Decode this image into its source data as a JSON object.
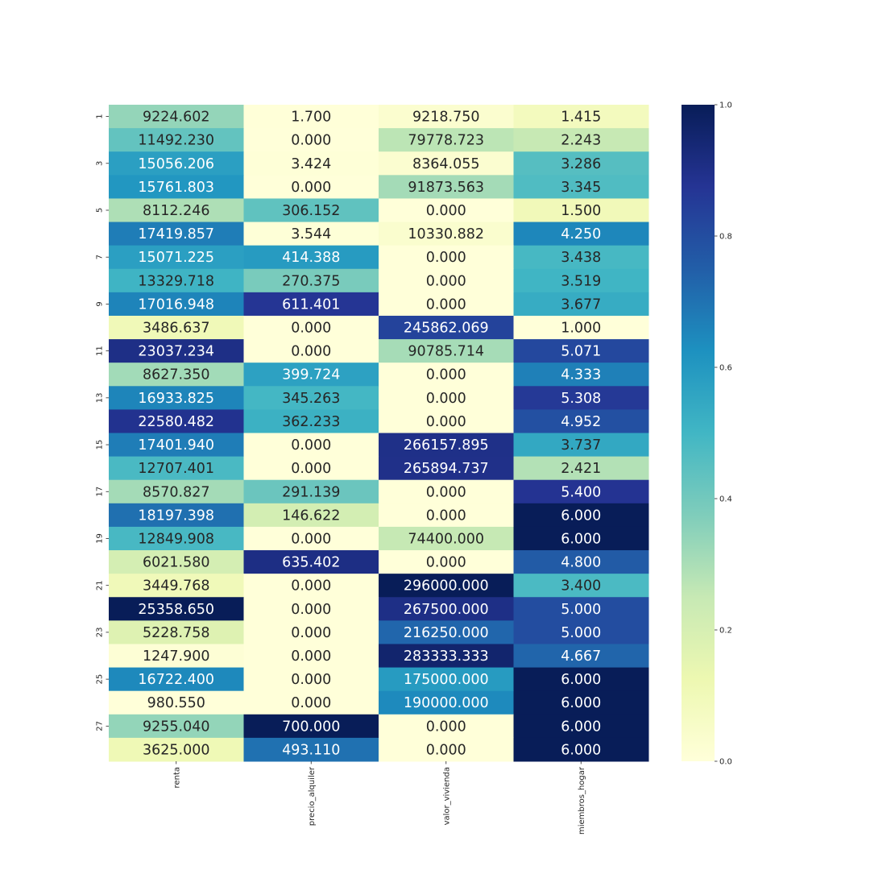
{
  "chart_data": {
    "type": "heatmap",
    "columns": [
      "renta",
      "precio_alquiler",
      "valor_vivienda",
      "miembros_hogar"
    ],
    "row_tick_labels": [
      "1",
      "3",
      "5",
      "7",
      "9",
      "11",
      "13",
      "15",
      "17",
      "19",
      "21",
      "23",
      "25",
      "27"
    ],
    "row_tick_every": 2,
    "row_count": 28,
    "values": [
      [
        9224.602,
        1.7,
        9218.75,
        1.415
      ],
      [
        11492.23,
        0.0,
        79778.723,
        2.243
      ],
      [
        15056.206,
        3.424,
        8364.055,
        3.286
      ],
      [
        15761.803,
        0.0,
        91873.563,
        3.345
      ],
      [
        8112.246,
        306.152,
        0.0,
        1.5
      ],
      [
        17419.857,
        3.544,
        10330.882,
        4.25
      ],
      [
        15071.225,
        414.388,
        0.0,
        3.438
      ],
      [
        13329.718,
        270.375,
        0.0,
        3.519
      ],
      [
        17016.948,
        611.401,
        0.0,
        3.677
      ],
      [
        3486.637,
        0.0,
        245862.069,
        1.0
      ],
      [
        23037.234,
        0.0,
        90785.714,
        5.071
      ],
      [
        8627.35,
        399.724,
        0.0,
        4.333
      ],
      [
        16933.825,
        345.263,
        0.0,
        5.308
      ],
      [
        22580.482,
        362.233,
        0.0,
        4.952
      ],
      [
        17401.94,
        0.0,
        266157.895,
        3.737
      ],
      [
        12707.401,
        0.0,
        265894.737,
        2.421
      ],
      [
        8570.827,
        291.139,
        0.0,
        5.4
      ],
      [
        18197.398,
        146.622,
        0.0,
        6.0
      ],
      [
        12849.908,
        0.0,
        74400.0,
        6.0
      ],
      [
        6021.58,
        635.402,
        0.0,
        4.8
      ],
      [
        3449.768,
        0.0,
        296000.0,
        3.4
      ],
      [
        25358.65,
        0.0,
        267500.0,
        5.0
      ],
      [
        5228.758,
        0.0,
        216250.0,
        5.0
      ],
      [
        1247.9,
        0.0,
        283333.333,
        4.667
      ],
      [
        16722.4,
        0.0,
        175000.0,
        6.0
      ],
      [
        980.55,
        0.0,
        190000.0,
        6.0
      ],
      [
        9255.04,
        700.0,
        0.0,
        6.0
      ],
      [
        3625.0,
        493.11,
        0.0,
        6.0
      ]
    ],
    "normalization": "per-column min-max",
    "colormap": "YlGnBu",
    "colormap_stops": [
      "#ffffd9",
      "#edf8b1",
      "#c7e9b4",
      "#7fcdbb",
      "#41b6c4",
      "#1d91c0",
      "#225ea8",
      "#253494",
      "#081d58"
    ],
    "value_format_decimals": 3,
    "colorbar": {
      "range": [
        0.0,
        1.0
      ],
      "ticks": [
        "0.0",
        "0.2",
        "0.4",
        "0.6",
        "0.8",
        "1.0"
      ]
    },
    "title": "",
    "xlabel": "",
    "ylabel": "",
    "grid": false
  }
}
